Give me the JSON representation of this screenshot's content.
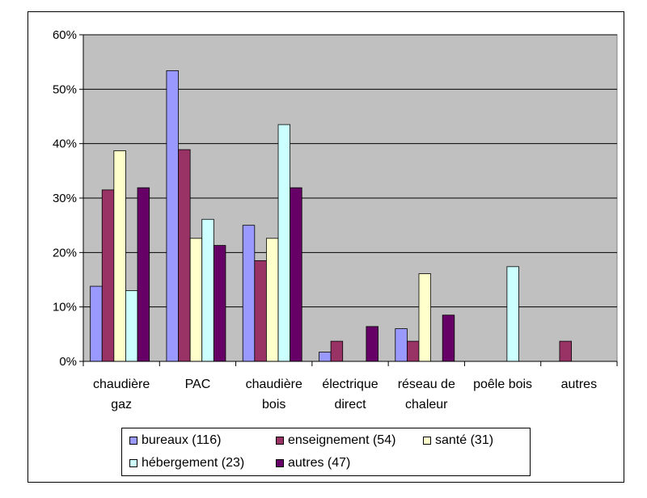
{
  "chart_data": {
    "type": "bar",
    "categories": [
      [
        "chaudière",
        "gaz"
      ],
      [
        "PAC"
      ],
      [
        "chaudière",
        "bois"
      ],
      [
        "électrique",
        "direct"
      ],
      [
        "réseau de",
        "chaleur"
      ],
      [
        "poêle bois"
      ],
      [
        "autres"
      ]
    ],
    "series": [
      {
        "name": "bureaux (116)",
        "color": "#9999ff",
        "values": [
          13.8,
          53.4,
          25.0,
          1.7,
          6.0,
          0,
          0
        ]
      },
      {
        "name": "enseignement (54)",
        "color": "#993366",
        "values": [
          31.5,
          38.9,
          18.5,
          3.7,
          3.7,
          0,
          3.7
        ]
      },
      {
        "name": "santé (31)",
        "color": "#ffffcc",
        "values": [
          38.7,
          22.6,
          22.6,
          0,
          16.1,
          0,
          0
        ]
      },
      {
        "name": "hébergement (23)",
        "color": "#ccffff",
        "values": [
          13.0,
          26.1,
          43.5,
          0,
          0,
          17.4,
          0
        ]
      },
      {
        "name": "autres (47)",
        "color": "#660066",
        "values": [
          31.9,
          21.3,
          31.9,
          6.4,
          8.5,
          0,
          0
        ]
      }
    ],
    "y_ticks": [
      "0%",
      "10%",
      "20%",
      "30%",
      "40%",
      "50%",
      "60%"
    ],
    "ylim": [
      0,
      60
    ],
    "plot_background": "#c0c0c0",
    "grid": true,
    "legend_position": "bottom"
  }
}
